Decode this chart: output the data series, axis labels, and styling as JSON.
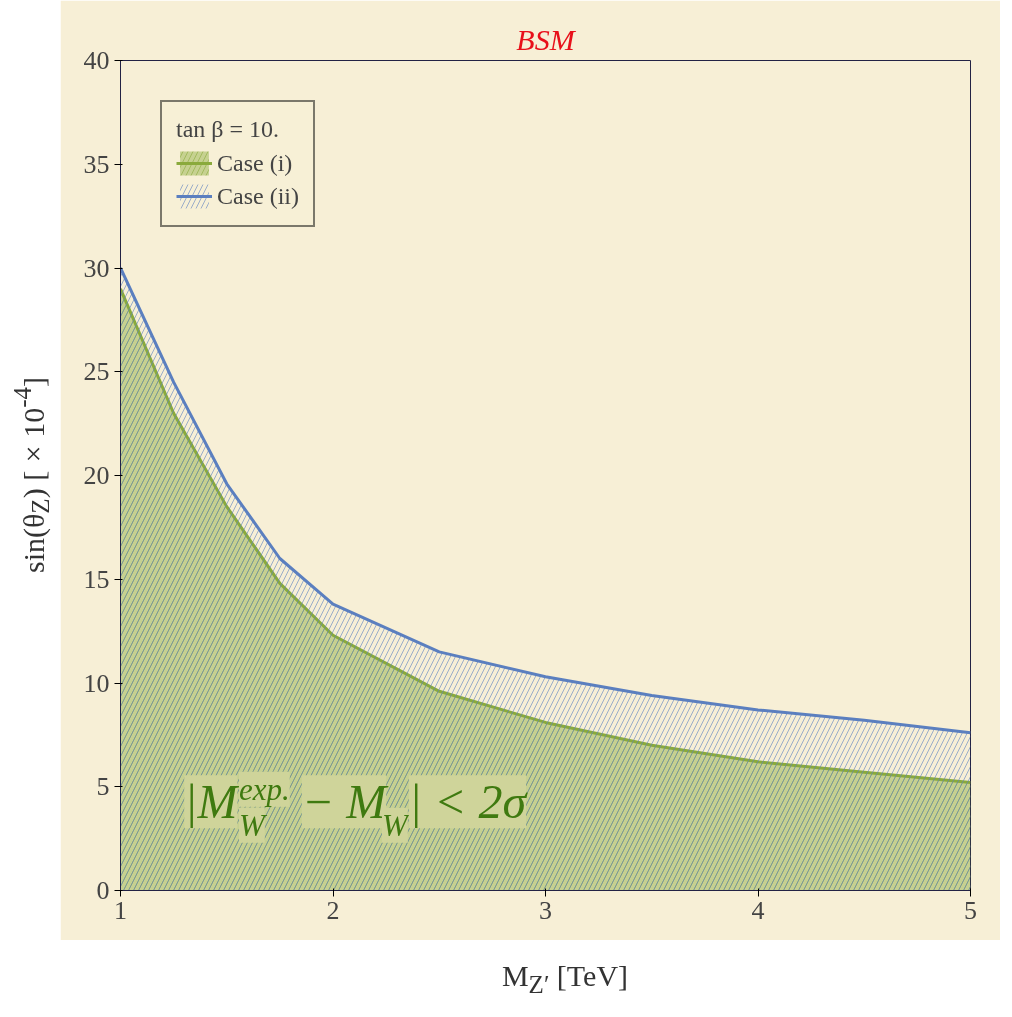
{
  "chart_data": {
    "type": "area",
    "title": "BSM",
    "xlabel": "M$_{Z′}$ [TeV]",
    "ylabel": "sin(θ$_{Z}$) [×10$^{-4}$]",
    "legend_title": "tan β = 10.",
    "x": [
      1,
      1.25,
      1.5,
      1.75,
      2,
      2.5,
      3,
      3.5,
      4,
      4.5,
      5
    ],
    "series": [
      {
        "name": "Case (i)",
        "color": "#8aaa3c",
        "values": [
          29,
          23,
          18.5,
          14.8,
          12.3,
          9.6,
          8.1,
          7.0,
          6.2,
          5.7,
          5.2
        ]
      },
      {
        "name": "Case (ii)",
        "color": "#5b7fbf",
        "values": [
          30,
          24.5,
          19.6,
          16,
          13.8,
          11.5,
          10.3,
          9.4,
          8.7,
          8.2,
          7.6
        ]
      }
    ],
    "xlim": [
      1,
      5
    ],
    "ylim": [
      0,
      40
    ],
    "xticks": [
      1,
      2,
      3,
      4,
      5
    ],
    "yticks": [
      0,
      5,
      10,
      15,
      20,
      25,
      30,
      35,
      40
    ],
    "grid": false,
    "legend": "top left",
    "annotations": [
      "|M$^{exp.}$$_{W}$ − M$_{W}$| < 2σ"
    ]
  }
}
